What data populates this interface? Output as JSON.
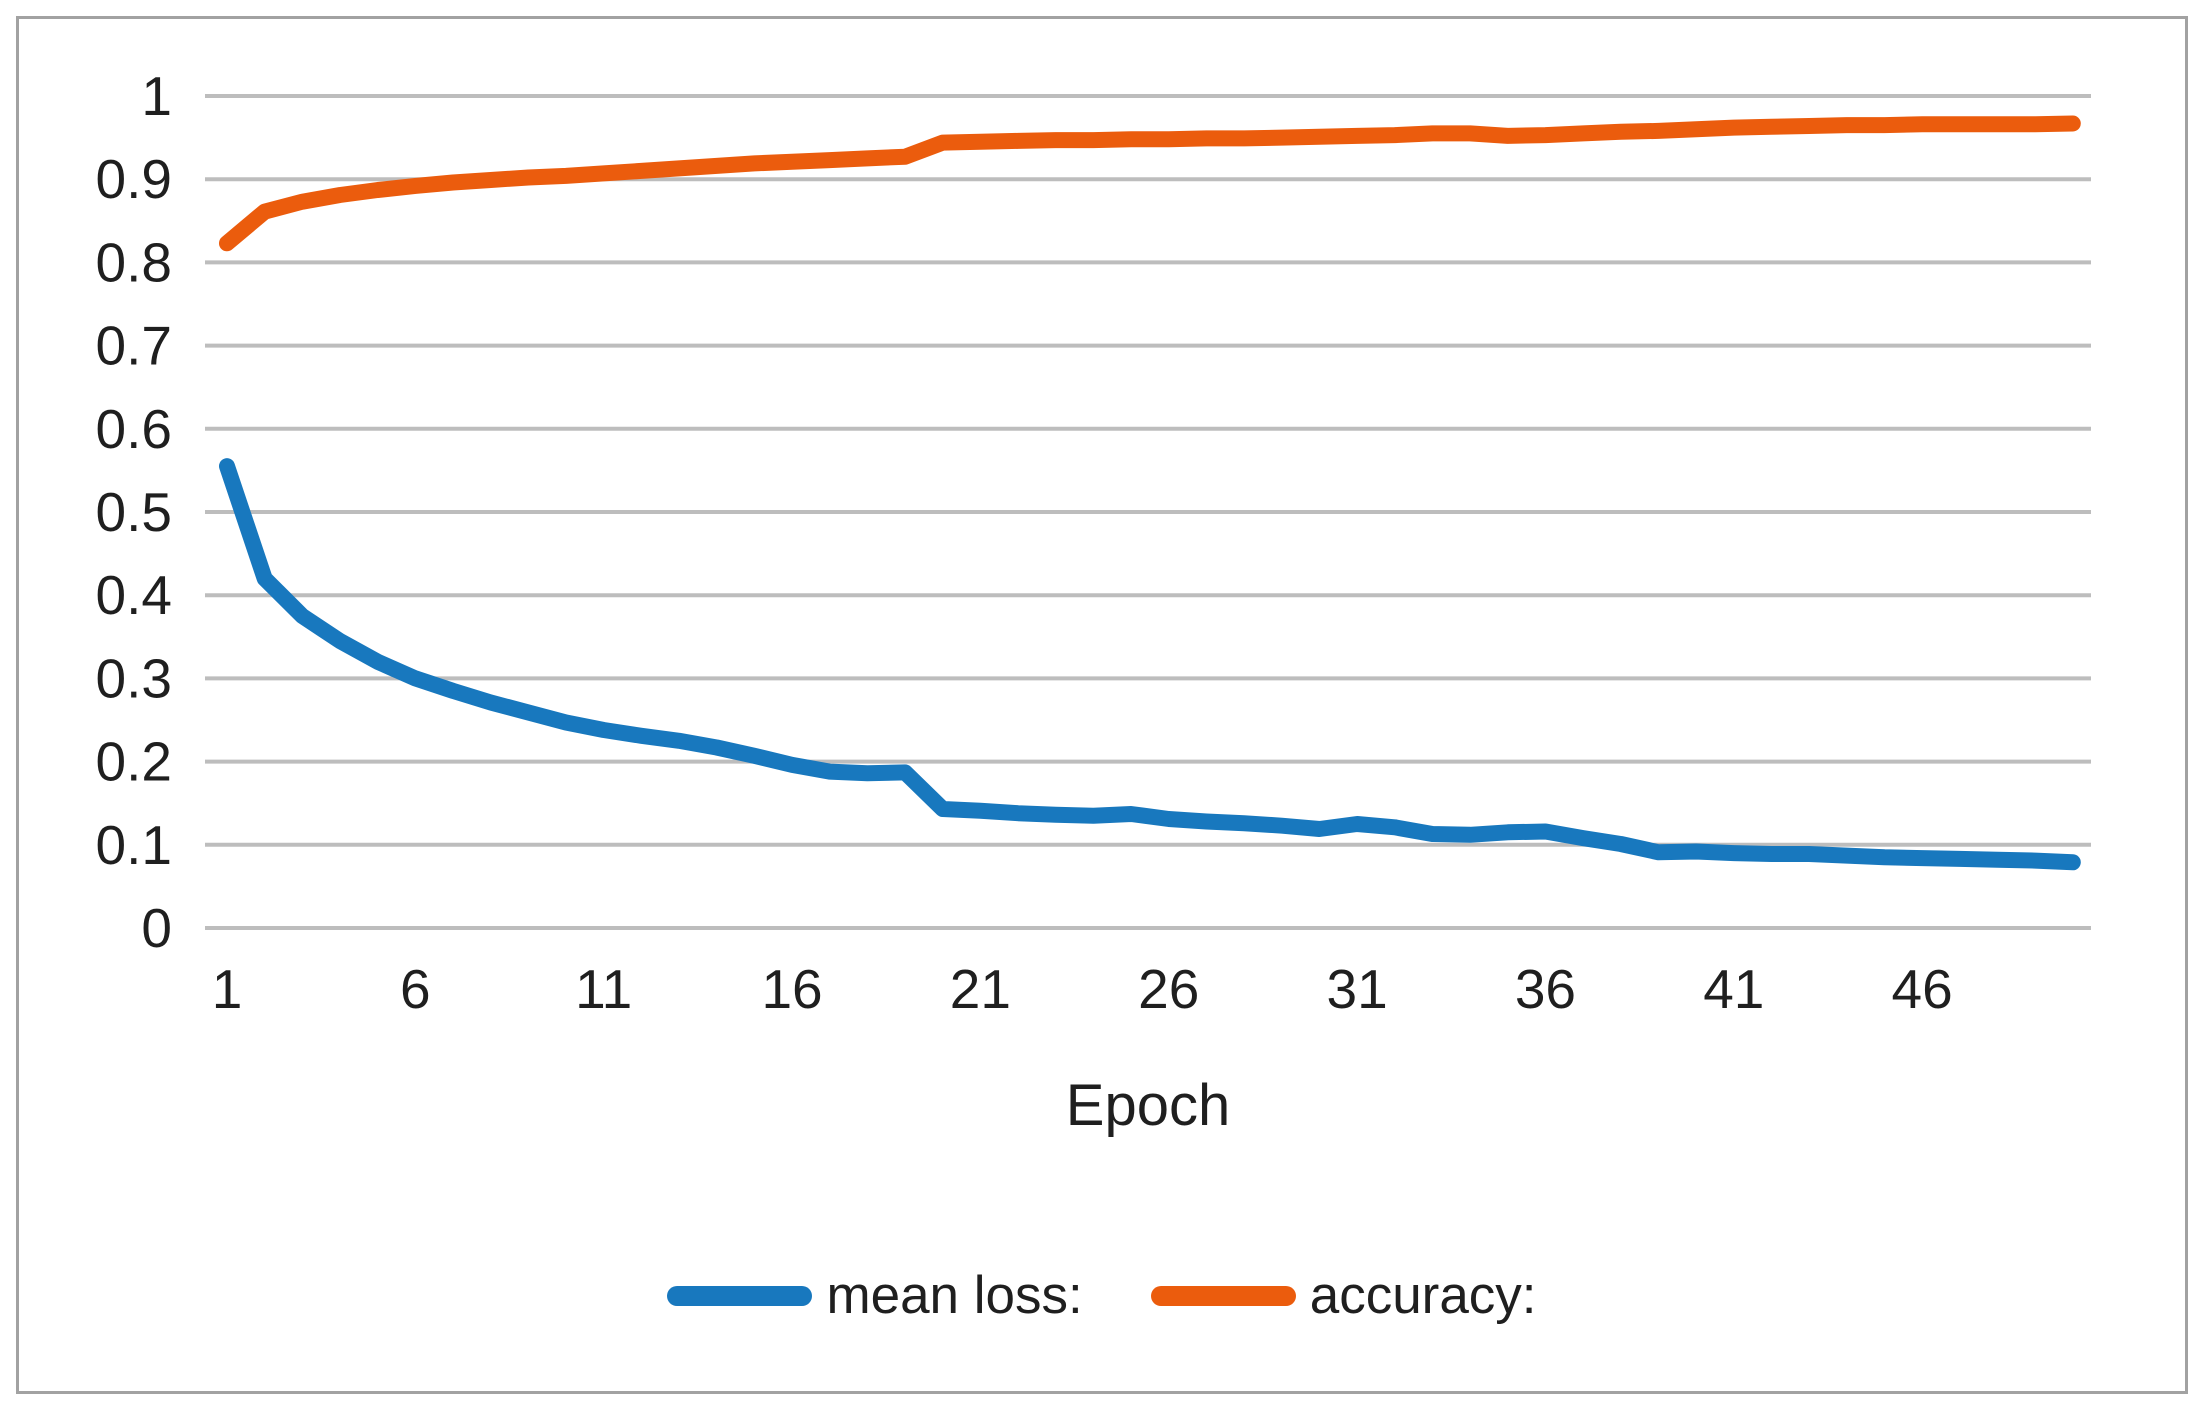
{
  "figure": {
    "background": "#ffffff",
    "border_color": "#a2a2a2"
  },
  "chart_data": {
    "type": "line",
    "title": "",
    "xlabel": "Epoch",
    "ylabel": "",
    "grid": "horizontal",
    "gridline_color": "#bdbdbd",
    "text_color": "#1f1f1f",
    "legend_position": "bottom-center",
    "xlim": [
      1,
      50
    ],
    "ylim": [
      0,
      1
    ],
    "x_tick_values": [
      1,
      6,
      11,
      16,
      21,
      26,
      31,
      36,
      41,
      46
    ],
    "x_tick_labels": [
      "1",
      "6",
      "11",
      "16",
      "21",
      "26",
      "31",
      "36",
      "41",
      "46"
    ],
    "y_tick_values": [
      0,
      0.1,
      0.2,
      0.3,
      0.4,
      0.5,
      0.6,
      0.7,
      0.8,
      0.9,
      1
    ],
    "y_tick_labels": [
      "0",
      "0.1",
      "0.2",
      "0.3",
      "0.4",
      "0.5",
      "0.6",
      "0.7",
      "0.8",
      "0.9",
      "1"
    ],
    "epochs": [
      1,
      2,
      3,
      4,
      5,
      6,
      7,
      8,
      9,
      10,
      11,
      12,
      13,
      14,
      15,
      16,
      17,
      18,
      19,
      20,
      21,
      22,
      23,
      24,
      25,
      26,
      27,
      28,
      29,
      30,
      31,
      32,
      33,
      34,
      35,
      36,
      37,
      38,
      39,
      40,
      41,
      42,
      43,
      44,
      45,
      46,
      47,
      48,
      49,
      50
    ],
    "series": [
      {
        "name": "mean loss:",
        "color": "#1878be",
        "values": [
          0.555,
          0.42,
          0.375,
          0.345,
          0.32,
          0.3,
          0.285,
          0.271,
          0.259,
          0.247,
          0.238,
          0.231,
          0.225,
          0.217,
          0.207,
          0.196,
          0.188,
          0.186,
          0.187,
          0.143,
          0.141,
          0.138,
          0.136,
          0.135,
          0.137,
          0.131,
          0.128,
          0.126,
          0.123,
          0.119,
          0.125,
          0.121,
          0.113,
          0.112,
          0.115,
          0.116,
          0.108,
          0.101,
          0.091,
          0.092,
          0.09,
          0.089,
          0.089,
          0.087,
          0.085,
          0.084,
          0.083,
          0.082,
          0.081,
          0.079
        ]
      },
      {
        "name": "accuracy:",
        "color": "#eb5c0d",
        "values": [
          0.823,
          0.861,
          0.873,
          0.881,
          0.887,
          0.892,
          0.896,
          0.899,
          0.902,
          0.904,
          0.907,
          0.91,
          0.913,
          0.916,
          0.919,
          0.921,
          0.923,
          0.925,
          0.927,
          0.944,
          0.945,
          0.946,
          0.947,
          0.947,
          0.948,
          0.948,
          0.949,
          0.949,
          0.95,
          0.951,
          0.952,
          0.953,
          0.955,
          0.955,
          0.952,
          0.953,
          0.955,
          0.957,
          0.958,
          0.96,
          0.962,
          0.963,
          0.964,
          0.965,
          0.965,
          0.966,
          0.966,
          0.966,
          0.966,
          0.967
        ]
      }
    ]
  }
}
